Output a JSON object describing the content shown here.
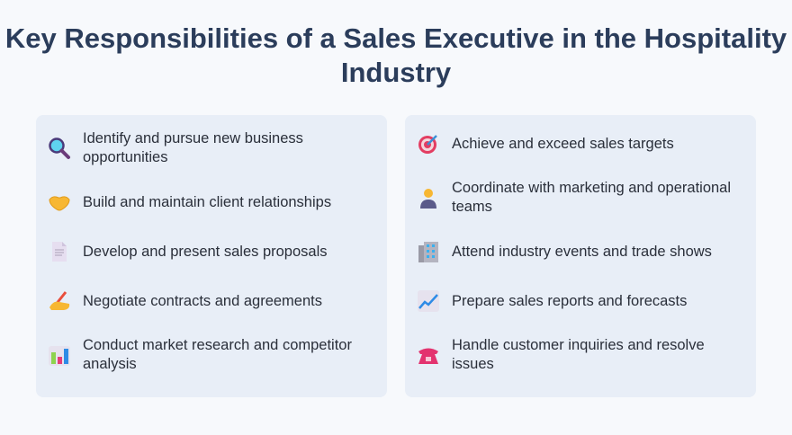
{
  "title": "Key Responsibilities of a Sales Executive in the Hospitality Industry",
  "left": [
    {
      "icon": "magnifying-glass-icon",
      "text": "Identify and pursue new business opportunities"
    },
    {
      "icon": "handshake-icon",
      "text": "Build and maintain client relationships"
    },
    {
      "icon": "document-icon",
      "text": "Develop and present sales proposals"
    },
    {
      "icon": "writing-hand-icon",
      "text": "Negotiate contracts and agreements"
    },
    {
      "icon": "bar-chart-icon",
      "text": "Conduct market research and competitor analysis"
    }
  ],
  "right": [
    {
      "icon": "target-icon",
      "text": "Achieve and exceed sales targets"
    },
    {
      "icon": "office-worker-icon",
      "text": "Coordinate with marketing and operational teams"
    },
    {
      "icon": "office-building-icon",
      "text": "Attend industry events and trade shows"
    },
    {
      "icon": "chart-increasing-icon",
      "text": "Prepare sales reports and forecasts"
    },
    {
      "icon": "telephone-icon",
      "text": "Handle customer inquiries and resolve issues"
    }
  ]
}
